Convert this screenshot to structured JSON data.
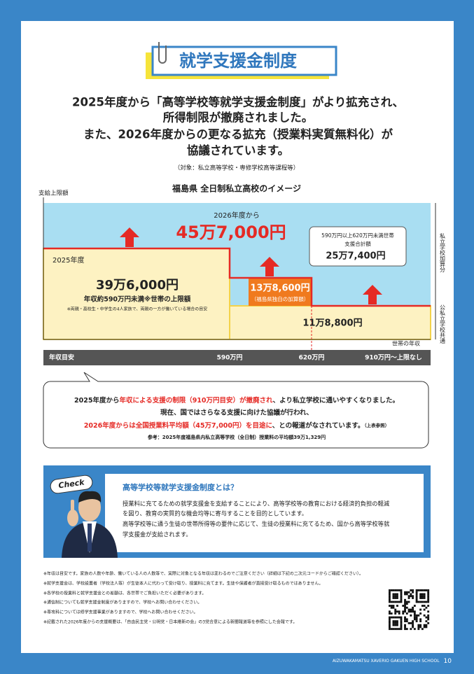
{
  "header": {
    "title": "就学支援金制度"
  },
  "intro": {
    "lines": [
      "2025年度から「高等学校等就学支援金制度」がより拡充され、",
      "所得制限が撤廃されました。",
      "また、2026年度からの更なる拡充（授業料実質無料化）が",
      "協議されています。"
    ],
    "note": "（対象：私立高等学校・専修学校高等課程等）"
  },
  "diagram": {
    "title": "福島県 全日制私立高校のイメージ",
    "y_label": "支給上限額",
    "x_label": "世帯の年収",
    "label_2026": "2026年度から",
    "amount_2026": "45万7,000円",
    "label_2025": "2025年度",
    "amount_2025": "39万6,000円",
    "sub_2025": "年収約590万円未満※世帯の上限額",
    "note_2025": "※両親・高校生・中学生の4人家族で、両親の一方が働いている場合の目安",
    "amount_pref": "13万8,600円",
    "sub_pref": "（福島県独自の加算額）",
    "band_label": [
      "590万円以上620万円未満世帯",
      "支援合計額"
    ],
    "band_amount": "25万7,400円",
    "amount_common": "11万8,800円",
    "side_private": "私立学校加算分",
    "side_common": "公私立学校共通",
    "income": [
      "年収目安",
      "590万円",
      "620万円",
      "910万円～上限なし"
    ]
  },
  "callout": {
    "line1": [
      "2025年度から",
      "年収による支援の制限（910万円目安）が撤廃され",
      "、より私立学校に通いやすくなりました。"
    ],
    "line2": "現在、国ではさらなる支援に向けた協議が行われ、",
    "line3": [
      "2026年度からは全国授業料平均額（45万7,000円）を目途に",
      "、との報道がなされています。",
      "（上表参照）"
    ],
    "reference": "参考：2025年度福島県内私立高等学校（全日制）授業料の平均額39万1,329円"
  },
  "check": {
    "badge": "Check",
    "heading": "高等学校等就学支援金制度とは？",
    "lines": [
      "授業料に充てるための就学支援金を支給することにより、高等学校等の教育における経済的負担の軽減",
      "を図り、教育の実質的な機会均等に寄与することを目的としています。",
      "高等学校等に通う生徒の世帯所得等の要件に応じて、生徒の授業料に充てるため、国から高等学校等就",
      "学支援金が支給されます。"
    ]
  },
  "footnotes": [
    "※年収は目安です。家族の人数や年齢、働いている人の人数等で、実際に対象となる年収は変わるのでご注意ください（詳細は下記の二次元コードからご確認ください）。",
    "※就学支援金は、学校設置者（学校法人等）が生徒本人に代わって受け取り、授業料に充てます。生徒や保護者が直接受け取るものではありません。",
    "※各学校の授業料と就学支援金との差額は、各世帯でご負担いただく必要があります。",
    "※通信制についても就学支援金制度がありますので、学校へお問い合わせください。",
    "※専攻科については修学支援事業がありますので、学校へお問い合わせください。",
    "※記載された2026年度からの支援概要は、「自由民主党・公明党・日本維新の会」の3党合意による新聞報道等を参照にした会報です。"
  ],
  "footer": {
    "school": "AIZUWAKAMATSU XAVERIO GAKUEN HIGH SCHOOL",
    "page": "10"
  }
}
